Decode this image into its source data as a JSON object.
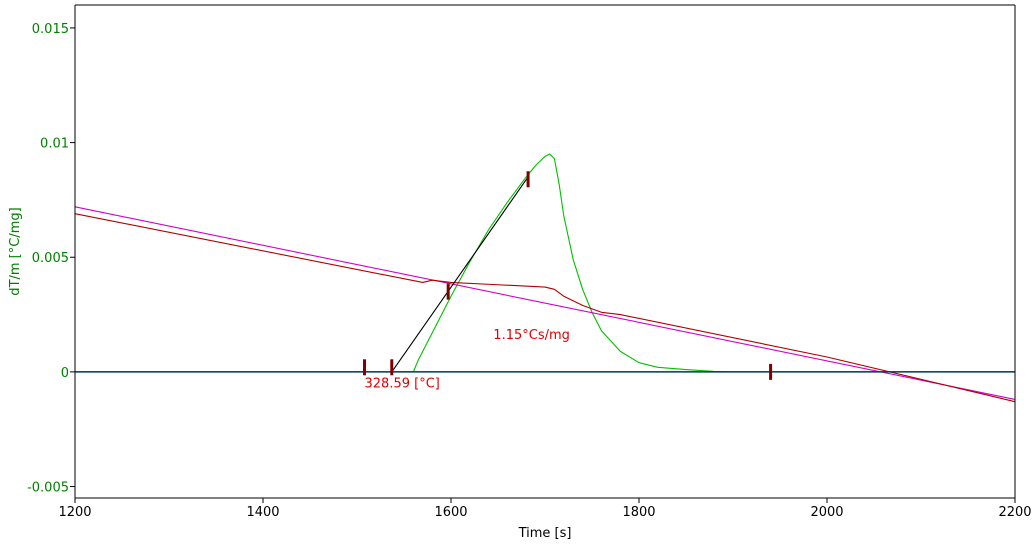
{
  "chart_data": {
    "type": "line",
    "title": "",
    "xlabel": "Time [s]",
    "ylabel": "dT/m  [°C/mg]",
    "xlim": [
      1200,
      2200
    ],
    "ylim": [
      -0.0055,
      0.016
    ],
    "x_ticks": [
      1200,
      1400,
      1600,
      1800,
      2000,
      2200
    ],
    "x_tick_labels": [
      "1200",
      "1400",
      "1600",
      "1800",
      "2000",
      "2200"
    ],
    "y_ticks": [
      -0.005,
      0,
      0.005,
      0.01,
      0.015
    ],
    "y_tick_labels": [
      "-0.005",
      "0",
      "0.005",
      "0.01",
      "0.015"
    ],
    "grid": false,
    "colors": {
      "axis": "#000000",
      "y_axis_text": "#008000",
      "green_curve": "#00c000",
      "magenta_curve": "#d000d0",
      "red_curve": "#b00000",
      "baseline": "#003f5f",
      "purple_baseline": "#5000b0",
      "tangent": "#000000",
      "marker": "#800000",
      "annotation": "#e00000"
    },
    "series": [
      {
        "color_key": "green_curve",
        "x": [
          1200,
          1500,
          1560,
          1565,
          1570,
          1585,
          1600,
          1620,
          1640,
          1660,
          1680,
          1690,
          1700,
          1705,
          1710,
          1715,
          1720,
          1730,
          1740,
          1750,
          1760,
          1780,
          1800,
          1820,
          1850,
          1880,
          1900,
          2000,
          2100,
          2200
        ],
        "y": [
          0,
          0,
          0,
          0.0005,
          0.0009,
          0.0021,
          0.0033,
          0.0048,
          0.0062,
          0.0074,
          0.0085,
          0.009,
          0.0094,
          0.0095,
          0.0093,
          0.0082,
          0.0068,
          0.0049,
          0.0036,
          0.0026,
          0.0018,
          0.0009,
          0.0004,
          0.0002,
          0.0001,
          2e-05,
          0,
          0,
          0,
          0
        ]
      },
      {
        "color_key": "magenta_curve",
        "x": [
          1200,
          2200
        ],
        "y": [
          0.0072,
          -0.0012
        ]
      },
      {
        "color_key": "red_curve",
        "x": [
          1200,
          1570,
          1580,
          1600,
          1650,
          1700,
          1710,
          1720,
          1740,
          1760,
          1780,
          2000,
          2200
        ],
        "y": [
          0.0069,
          0.0039,
          0.004,
          0.0039,
          0.0038,
          0.0037,
          0.0036,
          0.0033,
          0.0029,
          0.0026,
          0.0025,
          0.00065,
          -0.0013
        ]
      },
      {
        "color_key": "purple_baseline",
        "x": [
          1200,
          2200
        ],
        "y": [
          0,
          0
        ]
      },
      {
        "color_key": "baseline",
        "x": [
          1200,
          2200
        ],
        "y": [
          0,
          0
        ]
      },
      {
        "color_key": "tangent",
        "x": [
          1537,
          1682
        ],
        "y": [
          0,
          0.0085
        ]
      }
    ],
    "markers": [
      {
        "x": 1508,
        "y": 0.0002
      },
      {
        "x": 1537,
        "y": 0.0002
      },
      {
        "x": 1597,
        "y": 0.0035
      },
      {
        "x": 1682,
        "y": 0.0084
      },
      {
        "x": 1940,
        "y": 0
      }
    ],
    "annotations": [
      {
        "text": "1.15°Cs/mg",
        "x": 1645,
        "y": 0.0016
      },
      {
        "text": "328.59 [°C]",
        "x": 1508,
        "y": -0.0005
      }
    ]
  }
}
